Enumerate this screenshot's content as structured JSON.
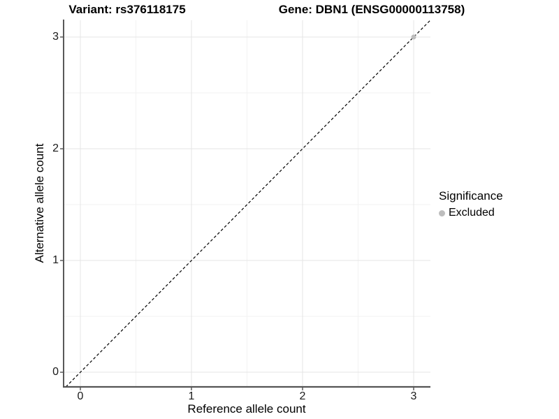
{
  "titles": {
    "left": "Variant: rs376118175",
    "right": "Gene: DBN1 (ENSG00000113758)"
  },
  "legend": {
    "title": "Significance",
    "items": [
      {
        "label": "Excluded",
        "color": "#bdbdbd"
      }
    ]
  },
  "chart_data": {
    "type": "scatter",
    "title": "Variant: rs376118175   Gene: DBN1 (ENSG00000113758)",
    "xlabel": "Reference allele count",
    "ylabel": "Alternative allele count",
    "xlim": [
      -0.151,
      3.151
    ],
    "ylim": [
      -0.131,
      3.15
    ],
    "xticks": [
      0,
      1,
      2,
      3
    ],
    "yticks": [
      0,
      1,
      2,
      3
    ],
    "x_minor_ticks": [
      0.5,
      1.5,
      2.5
    ],
    "y_minor_ticks": [
      0.5,
      1.5,
      2.5
    ],
    "grid": true,
    "legend_position": "right",
    "series": [
      {
        "name": "Excluded",
        "color": "#bdbdbd",
        "points": [
          {
            "x": 3,
            "y": 3
          }
        ]
      }
    ],
    "reference_line": {
      "kind": "identity",
      "slope": 1,
      "intercept": 0,
      "style": "dashed",
      "color": "#000000"
    },
    "colors": {
      "background": "#ffffff",
      "grid_major": "#e4e4e4",
      "grid_minor": "#f2f2f2",
      "axis_line_left": "#222222",
      "axis_line_bottom": "#555555",
      "tick_mark": "#333333",
      "point": "#bdbdbd"
    }
  }
}
